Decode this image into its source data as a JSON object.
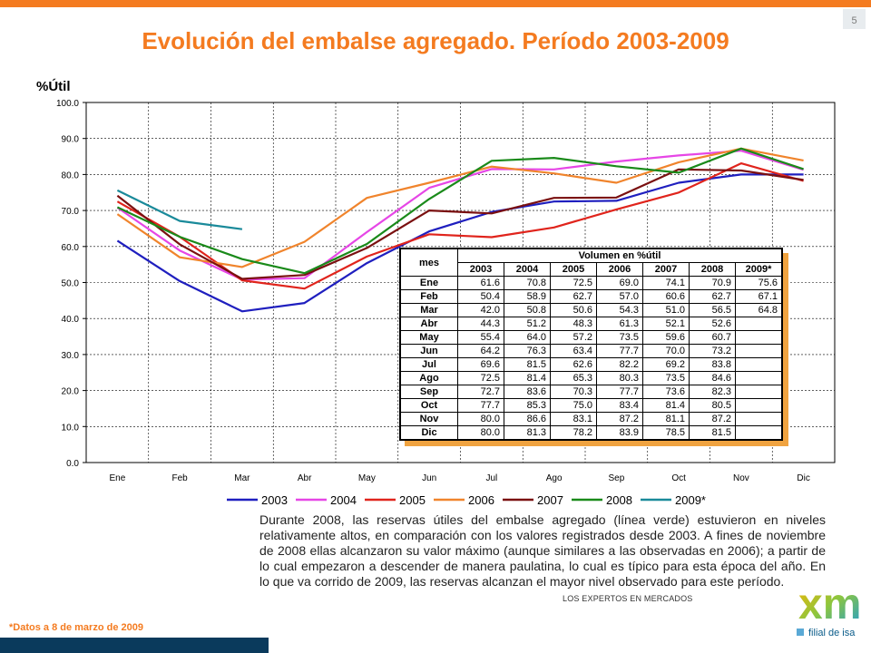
{
  "page_number": "5",
  "title": "Evolución del embalse agregado.  Período 2003-2009",
  "description": "Durante 2008, las reservas útiles del embalse agregado (línea verde) estuvieron en niveles relativamente altos, en comparación con los valores registrados desde 2003.  A fines de noviembre de 2008 ellas alcanzaron su valor máximo (aunque similares a las observadas en 2006); a partir de lo cual empezaron a descender de manera paulatina, lo cual es típico para esta época del año.  En lo que va corrido de 2009, las reservas alcanzan el mayor nivel observado para este período.",
  "footnote": "*Datos  a 8 de marzo de 2009",
  "logo": {
    "tagline": "LOS EXPERTOS EN MERCADOS",
    "wordmark": "xm",
    "subtitle": "filial de isa"
  },
  "chart_data": {
    "type": "line",
    "ylabel": "%Útil",
    "ylim": [
      0,
      100
    ],
    "yticks": [
      "0.0",
      "10.0",
      "20.0",
      "30.0",
      "40.0",
      "50.0",
      "60.0",
      "70.0",
      "80.0",
      "90.0",
      "100.0"
    ],
    "categories": [
      "Ene",
      "Feb",
      "Mar",
      "Abr",
      "May",
      "Jun",
      "Jul",
      "Ago",
      "Sep",
      "Oct",
      "Nov",
      "Dic"
    ],
    "grid": true,
    "legend_position": "bottom",
    "series": [
      {
        "name": "2003",
        "color": "#1f1fbf",
        "values": [
          61.6,
          50.4,
          42.0,
          44.3,
          55.4,
          64.2,
          69.6,
          72.5,
          72.7,
          77.7,
          80.0,
          80.0
        ]
      },
      {
        "name": "2004",
        "color": "#e646e6",
        "values": [
          70.8,
          58.9,
          50.8,
          51.2,
          64.0,
          76.3,
          81.5,
          81.4,
          83.6,
          85.3,
          86.6,
          81.3
        ]
      },
      {
        "name": "2005",
        "color": "#e0241c",
        "values": [
          72.5,
          62.7,
          50.6,
          48.3,
          57.2,
          63.4,
          62.6,
          65.3,
          70.3,
          75.0,
          83.1,
          78.2
        ]
      },
      {
        "name": "2006",
        "color": "#f0842c",
        "values": [
          69.0,
          57.0,
          54.3,
          61.3,
          73.5,
          77.7,
          82.2,
          80.3,
          77.7,
          83.4,
          87.2,
          83.9
        ]
      },
      {
        "name": "2007",
        "color": "#7a1010",
        "values": [
          74.1,
          60.6,
          51.0,
          52.1,
          59.6,
          70.0,
          69.2,
          73.5,
          73.6,
          81.4,
          81.1,
          78.5
        ]
      },
      {
        "name": "2008",
        "color": "#1a8a1a",
        "values": [
          70.9,
          62.7,
          56.5,
          52.6,
          60.7,
          73.2,
          83.8,
          84.6,
          82.3,
          80.5,
          87.2,
          81.5
        ]
      },
      {
        "name": "2009*",
        "color": "#1a8a9a",
        "values": [
          75.6,
          67.1,
          64.8,
          null,
          null,
          null,
          null,
          null,
          null,
          null,
          null,
          null
        ]
      }
    ],
    "table": {
      "header_label": "Volumen en %útil",
      "row_header": "mes",
      "columns": [
        "2003",
        "2004",
        "2005",
        "2006",
        "2007",
        "2008",
        "2009*"
      ],
      "rows": [
        {
          "mes": "Ene",
          "values": [
            "61.6",
            "70.8",
            "72.5",
            "69.0",
            "74.1",
            "70.9",
            "75.6"
          ]
        },
        {
          "mes": "Feb",
          "values": [
            "50.4",
            "58.9",
            "62.7",
            "57.0",
            "60.6",
            "62.7",
            "67.1"
          ]
        },
        {
          "mes": "Mar",
          "values": [
            "42.0",
            "50.8",
            "50.6",
            "54.3",
            "51.0",
            "56.5",
            "64.8"
          ]
        },
        {
          "mes": "Abr",
          "values": [
            "44.3",
            "51.2",
            "48.3",
            "61.3",
            "52.1",
            "52.6",
            ""
          ]
        },
        {
          "mes": "May",
          "values": [
            "55.4",
            "64.0",
            "57.2",
            "73.5",
            "59.6",
            "60.7",
            ""
          ]
        },
        {
          "mes": "Jun",
          "values": [
            "64.2",
            "76.3",
            "63.4",
            "77.7",
            "70.0",
            "73.2",
            ""
          ]
        },
        {
          "mes": "Jul",
          "values": [
            "69.6",
            "81.5",
            "62.6",
            "82.2",
            "69.2",
            "83.8",
            ""
          ]
        },
        {
          "mes": "Ago",
          "values": [
            "72.5",
            "81.4",
            "65.3",
            "80.3",
            "73.5",
            "84.6",
            ""
          ]
        },
        {
          "mes": "Sep",
          "values": [
            "72.7",
            "83.6",
            "70.3",
            "77.7",
            "73.6",
            "82.3",
            ""
          ]
        },
        {
          "mes": "Oct",
          "values": [
            "77.7",
            "85.3",
            "75.0",
            "83.4",
            "81.4",
            "80.5",
            ""
          ]
        },
        {
          "mes": "Nov",
          "values": [
            "80.0",
            "86.6",
            "83.1",
            "87.2",
            "81.1",
            "87.2",
            ""
          ]
        },
        {
          "mes": "Dic",
          "values": [
            "80.0",
            "81.3",
            "78.2",
            "83.9",
            "78.5",
            "81.5",
            ""
          ]
        }
      ]
    }
  }
}
